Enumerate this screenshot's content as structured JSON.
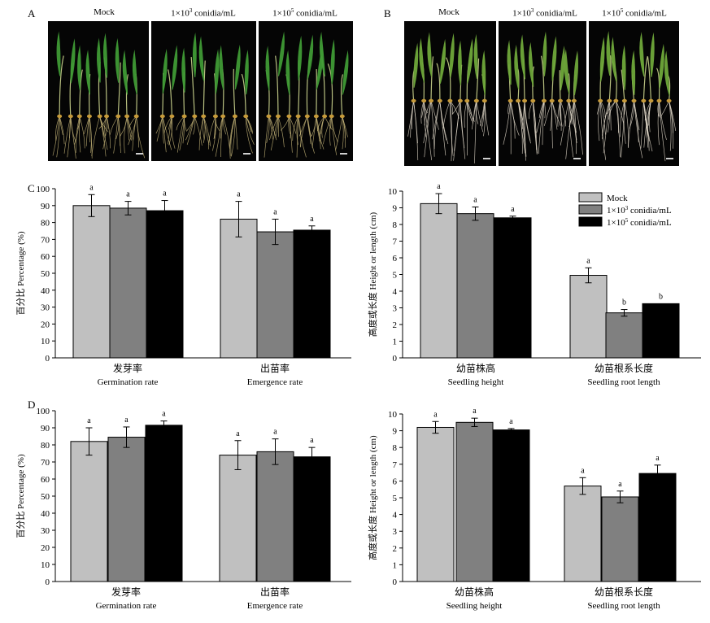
{
  "photo_panels": [
    {
      "letter": "A",
      "titles": [
        {
          "main": "Mock",
          "sup": ""
        },
        {
          "main": "1×10",
          "sup": "3",
          "tail": " conidia/mL"
        },
        {
          "main": "1×10",
          "sup": "5",
          "tail": " conidia/mL"
        }
      ]
    },
    {
      "letter": "B",
      "titles": [
        {
          "main": "Mock",
          "sup": ""
        },
        {
          "main": "1×10",
          "sup": "3",
          "tail": " conidia/mL"
        },
        {
          "main": "1×10",
          "sup": "5",
          "tail": " conidia/mL"
        }
      ]
    }
  ],
  "colors": {
    "mock": "#c0c0c0",
    "low": "#808080",
    "high": "#000000"
  },
  "chart_data": [
    {
      "id": "C-left",
      "letter": "C",
      "type": "bar",
      "ylabel": "百分比 Percentage (%)",
      "ylim": [
        0,
        100
      ],
      "yticks": [
        0,
        10,
        20,
        30,
        40,
        50,
        60,
        70,
        80,
        90,
        100
      ],
      "categories": [
        {
          "cn": "发芽率",
          "en": "Germination rate"
        },
        {
          "cn": "出苗率",
          "en": "Emergence rate"
        }
      ],
      "series": [
        {
          "name": "Mock",
          "values": [
            90,
            82
          ],
          "errors": [
            6.5,
            10.5
          ],
          "letters": [
            "a",
            "a"
          ]
        },
        {
          "name": "1×10³ conidia/mL",
          "values": [
            88.5,
            74.5
          ],
          "errors": [
            4,
            7.5
          ],
          "letters": [
            "a",
            "a"
          ]
        },
        {
          "name": "1×10⁵ conidia/mL",
          "values": [
            87,
            75.5
          ],
          "errors": [
            6,
            2.5
          ],
          "letters": [
            "a",
            "a"
          ]
        }
      ]
    },
    {
      "id": "C-right",
      "letter": "",
      "type": "bar",
      "ylabel": "高度或长度 Height or length (cm)",
      "ylim": [
        0,
        10
      ],
      "yticks": [
        0,
        1,
        2,
        3,
        4,
        5,
        6,
        7,
        8,
        9,
        10
      ],
      "legend": {
        "placement": "top-right",
        "entries": [
          {
            "label": "Mock",
            "sup": ""
          },
          {
            "label": "1×10",
            "sup": "3",
            "tail": " conidia/mL"
          },
          {
            "label": "1×10",
            "sup": "5",
            "tail": " conidia/mL"
          }
        ]
      },
      "categories": [
        {
          "cn": "幼苗株高",
          "en": "Seedling height"
        },
        {
          "cn": "幼苗根系长度",
          "en": "Seedling root length"
        }
      ],
      "series": [
        {
          "name": "Mock",
          "values": [
            9.25,
            4.95
          ],
          "errors": [
            0.6,
            0.45
          ],
          "letters": [
            "a",
            "a"
          ]
        },
        {
          "name": "1×10³ conidia/mL",
          "values": [
            8.65,
            2.7
          ],
          "errors": [
            0.4,
            0.2
          ],
          "letters": [
            "a",
            "b"
          ]
        },
        {
          "name": "1×10⁵ conidia/mL",
          "values": [
            8.4,
            3.25
          ],
          "errors": [
            0.1,
            0
          ],
          "letters": [
            "a",
            "b"
          ]
        }
      ]
    },
    {
      "id": "D-left",
      "letter": "D",
      "type": "bar",
      "ylabel": "百分比 Percentage (%)",
      "ylim": [
        0,
        100
      ],
      "yticks": [
        0,
        10,
        20,
        30,
        40,
        50,
        60,
        70,
        80,
        90,
        100
      ],
      "categories": [
        {
          "cn": "发芽率",
          "en": "Germination rate"
        },
        {
          "cn": "出苗率",
          "en": "Emergence rate"
        }
      ],
      "series": [
        {
          "name": "Mock",
          "values": [
            82,
            74
          ],
          "errors": [
            8,
            8.5
          ],
          "letters": [
            "a",
            "a"
          ]
        },
        {
          "name": "1×10³ conidia/mL",
          "values": [
            84.5,
            76
          ],
          "errors": [
            6,
            7.5
          ],
          "letters": [
            "a",
            "a"
          ]
        },
        {
          "name": "1×10⁵ conidia/mL",
          "values": [
            91.5,
            73
          ],
          "errors": [
            2.5,
            5.5
          ],
          "letters": [
            "a",
            "a"
          ]
        }
      ]
    },
    {
      "id": "D-right",
      "letter": "",
      "type": "bar",
      "ylabel": "高度或长度 Height or length (cm)",
      "ylim": [
        0,
        10
      ],
      "yticks": [
        0,
        1,
        2,
        3,
        4,
        5,
        6,
        7,
        8,
        9,
        10
      ],
      "categories": [
        {
          "cn": "幼苗株高",
          "en": "Seedling height"
        },
        {
          "cn": "幼苗根系长度",
          "en": "Seedling root length"
        }
      ],
      "series": [
        {
          "name": "Mock",
          "values": [
            9.2,
            5.7
          ],
          "errors": [
            0.35,
            0.5
          ],
          "letters": [
            "a",
            "a"
          ]
        },
        {
          "name": "1×10³ conidia/mL",
          "values": [
            9.5,
            5.05
          ],
          "errors": [
            0.25,
            0.35
          ],
          "letters": [
            "a",
            "a"
          ]
        },
        {
          "name": "1×10⁵ conidia/mL",
          "values": [
            9.05,
            6.45
          ],
          "errors": [
            0.08,
            0.5
          ],
          "letters": [
            "a",
            "a"
          ]
        }
      ]
    }
  ]
}
